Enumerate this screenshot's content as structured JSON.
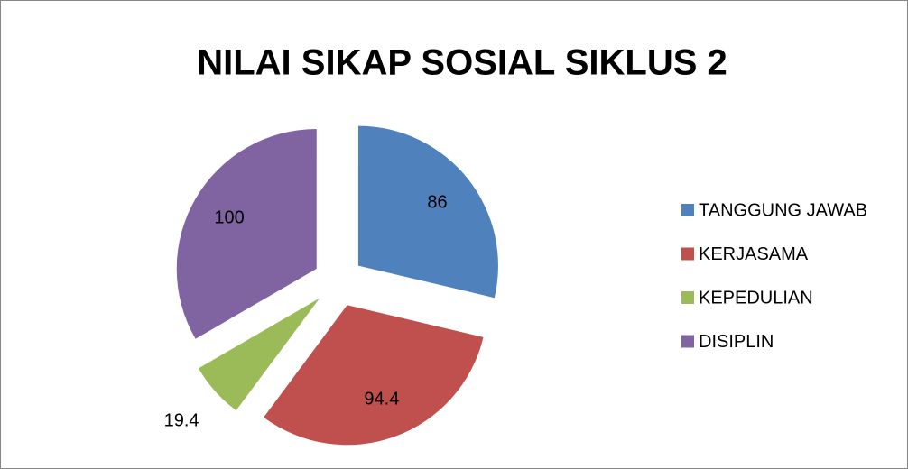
{
  "chart_data": {
    "type": "pie",
    "title": "NILAI SIKAP SOSIAL SIKLUS 2",
    "categories": [
      "TANGGUNG JAWAB",
      "KERJASAMA",
      "KEPEDULIAN",
      "DISIPLIN"
    ],
    "values": [
      86,
      94.4,
      19.4,
      100
    ],
    "colors": [
      "#4f81bd",
      "#c0504d",
      "#9bbb59",
      "#8064a2"
    ],
    "legend": "right",
    "exploded": true
  }
}
